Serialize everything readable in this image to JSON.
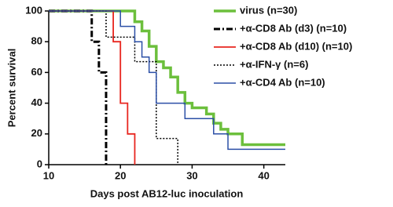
{
  "chart_data": {
    "type": "step",
    "xlabel": "Days post AB12-luc inoculation",
    "ylabel": "Percent survival",
    "xlim": [
      10,
      43
    ],
    "xticks": [
      10,
      20,
      30,
      40
    ],
    "ylim": [
      0,
      100
    ],
    "yticks": [
      0,
      20,
      40,
      60,
      80,
      100
    ],
    "grid": false,
    "legend": "upper right",
    "series": [
      {
        "name": "virus (n=30)",
        "color": "#6cbf3c",
        "width": 3.5,
        "dash": "solid",
        "x": [
          10,
          22,
          23,
          24,
          25,
          26,
          27,
          28,
          29,
          30,
          32,
          33,
          34,
          35,
          37,
          43
        ],
        "values": [
          100,
          93,
          87,
          77,
          67,
          63,
          57,
          47,
          40,
          37,
          33,
          27,
          23,
          20,
          13,
          13
        ]
      },
      {
        "name": "+α-CD8 Ab (d3) (n=10)",
        "color": "#000000",
        "width": 3,
        "dash": "dashdot",
        "x": [
          10,
          16,
          17,
          18
        ],
        "values": [
          100,
          80,
          60,
          0
        ]
      },
      {
        "name": "+α-CD8 Ab (d10) (n=10)",
        "color": "#e8261f",
        "width": 1.8,
        "dash": "solid",
        "x": [
          10,
          19,
          20,
          21,
          22
        ],
        "values": [
          100,
          80,
          40,
          20,
          0
        ]
      },
      {
        "name": "+α-IFN-γ (n=6)",
        "color": "#000000",
        "width": 1.5,
        "dash": "dotted",
        "x": [
          10,
          18,
          22,
          25,
          28
        ],
        "values": [
          100,
          83,
          67,
          17,
          0
        ]
      },
      {
        "name": "+α-CD4 Ab (n=10)",
        "color": "#2b4fa6",
        "width": 1.5,
        "dash": "solid",
        "x": [
          10,
          20,
          22,
          23,
          24,
          25,
          29,
          33,
          35,
          43
        ],
        "values": [
          100,
          90,
          80,
          70,
          60,
          40,
          30,
          20,
          10,
          10
        ]
      }
    ]
  }
}
